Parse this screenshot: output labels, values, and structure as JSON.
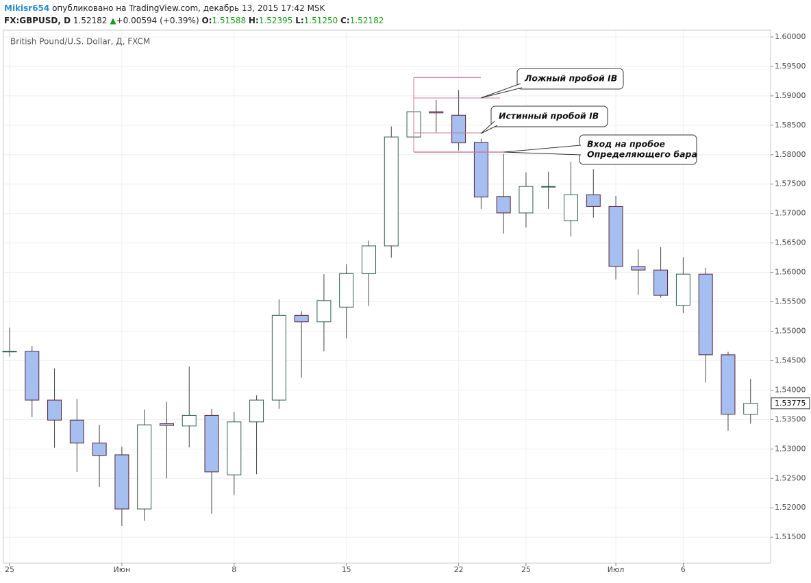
{
  "header": {
    "user": "Mikisr654",
    "published": "опубликовано на TradingView.com, декабрь 13, 2015 17:42 MSK",
    "symbol": "FX:GBPUSD, D",
    "price": "1.52182",
    "change": "+0.00594 (+0.39%)",
    "o_label": "O:",
    "o": "1.51588",
    "h_label": "H:",
    "h": "1.52395",
    "l_label": "L:",
    "l": "1.51250",
    "c_label": "C:",
    "c": "1.52182"
  },
  "chart_data": {
    "type": "candlestick",
    "title": "British Pound/U.S. Dollar, Д, FXCM",
    "categories": [
      "25",
      null,
      null,
      null,
      null,
      "Июн",
      null,
      null,
      null,
      null,
      "8",
      null,
      null,
      null,
      null,
      "15",
      null,
      null,
      null,
      null,
      "22",
      null,
      null,
      "25",
      null,
      null,
      null,
      "Июл",
      null,
      null,
      "6",
      null,
      null,
      null
    ],
    "open": [
      1.5466,
      1.5466,
      1.5383,
      1.5349,
      1.531,
      1.529,
      1.5198,
      1.5343,
      1.5339,
      1.5357,
      1.5256,
      1.5346,
      1.5383,
      1.5527,
      1.5516,
      1.5541,
      1.5598,
      1.5645,
      1.583,
      1.5873,
      1.5867,
      1.5821,
      1.5729,
      1.5701,
      1.5746,
      1.5688,
      1.5732,
      1.5712,
      1.561,
      1.5604,
      1.5544,
      1.5597,
      1.546,
      1.5359
    ],
    "high": [
      1.5506,
      1.5475,
      1.5437,
      1.5385,
      1.5341,
      1.5304,
      1.5367,
      1.538,
      1.544,
      1.5368,
      1.5363,
      1.5391,
      1.5554,
      1.5534,
      1.5597,
      1.5614,
      1.5654,
      1.5848,
      1.5873,
      1.5893,
      1.591,
      1.5827,
      1.5801,
      1.577,
      1.5771,
      1.5788,
      1.5775,
      1.573,
      1.5639,
      1.5643,
      1.5626,
      1.5608,
      1.5465,
      1.5419
    ],
    "low": [
      1.5457,
      1.5354,
      1.5302,
      1.5261,
      1.5235,
      1.5169,
      1.5178,
      1.525,
      1.5303,
      1.519,
      1.5222,
      1.5257,
      1.5368,
      1.5421,
      1.5466,
      1.5488,
      1.5543,
      1.5625,
      1.5828,
      1.5838,
      1.5807,
      1.5708,
      1.5666,
      1.5676,
      1.5708,
      1.5661,
      1.5693,
      1.5588,
      1.5562,
      1.5557,
      1.5531,
      1.5413,
      1.5331,
      1.5343
    ],
    "close": [
      1.5466,
      1.5383,
      1.5349,
      1.531,
      1.5289,
      1.5198,
      1.5341,
      1.534,
      1.5357,
      1.5261,
      1.5346,
      1.5383,
      1.5527,
      1.5516,
      1.5552,
      1.5598,
      1.5645,
      1.583,
      1.5873,
      1.5871,
      1.582,
      1.5728,
      1.5701,
      1.5746,
      1.5746,
      1.5732,
      1.5712,
      1.561,
      1.5604,
      1.5561,
      1.5597,
      1.546,
      1.5359,
      1.53775
    ],
    "up_color": "#ffffff",
    "up_border": "#2f5e4e",
    "down_color": "#a4bff0",
    "down_border": "#5a2232",
    "ylim": [
      1.5106,
      1.60116
    ],
    "yticks": [
      {
        "value": 1.515,
        "label": "1.51500"
      },
      {
        "value": 1.52,
        "label": "1.52000"
      },
      {
        "value": 1.525,
        "label": "1.52500"
      },
      {
        "value": 1.53,
        "label": "1.53000"
      },
      {
        "value": 1.535,
        "label": "1.53500"
      },
      {
        "value": 1.54,
        "label": "1.54000"
      },
      {
        "value": 1.545,
        "label": "1.54500"
      },
      {
        "value": 1.55,
        "label": "1.55000"
      },
      {
        "value": 1.555,
        "label": "1.55500"
      },
      {
        "value": 1.56,
        "label": "1.56000"
      },
      {
        "value": 1.565,
        "label": "1.56500"
      },
      {
        "value": 1.57,
        "label": "1.57000"
      },
      {
        "value": 1.575,
        "label": "1.57500"
      },
      {
        "value": 1.58,
        "label": "1.58000"
      },
      {
        "value": 1.585,
        "label": "1.58500"
      },
      {
        "value": 1.59,
        "label": "1.59000"
      },
      {
        "value": 1.595,
        "label": "1.59500"
      },
      {
        "value": 1.6,
        "label": "1.60000"
      }
    ],
    "last_price": 1.53775,
    "grid": true,
    "annotations": [
      "Ложный пробой IB",
      "Истинный пробой IB",
      "Вход на пробое",
      "Определяющего бара"
    ]
  }
}
